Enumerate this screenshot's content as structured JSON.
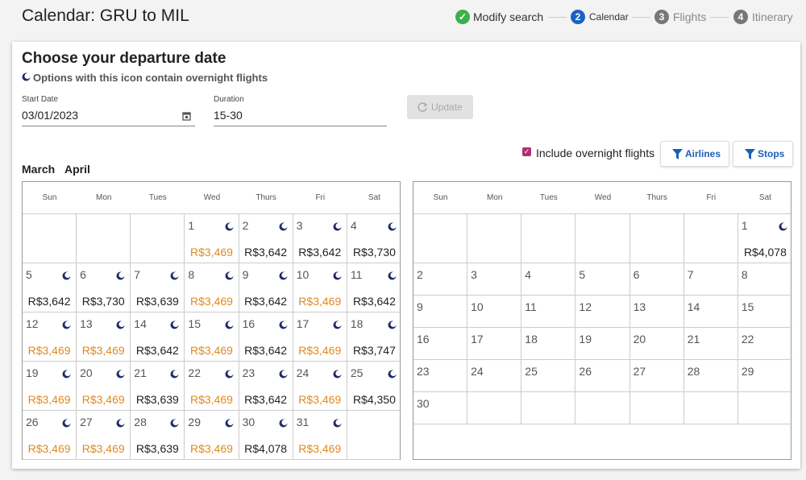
{
  "header": {
    "title": "Calendar: GRU to MIL",
    "steps": [
      {
        "label": "Modify search"
      },
      {
        "number": "2",
        "label": "Calendar"
      },
      {
        "number": "3",
        "label": "Flights"
      },
      {
        "number": "4",
        "label": "Itinerary"
      }
    ]
  },
  "panel": {
    "title": "Choose your departure date",
    "note": "Options with this icon contain overnight flights",
    "start_date": {
      "label": "Start Date",
      "value": "03/01/2023"
    },
    "duration": {
      "label": "Duration",
      "value": "15-30"
    },
    "update_button": "Update",
    "overnight_checkbox": {
      "label": "Include overnight flights",
      "checked": true
    },
    "filters": [
      "Airlines",
      "Stops"
    ],
    "month_tabs": [
      "March",
      "April"
    ]
  },
  "weekdays": [
    "Sun",
    "Mon",
    "Tues",
    "Wed",
    "Thurs",
    "Fri",
    "Sat"
  ],
  "calendars": [
    {
      "weeks": [
        [
          null,
          null,
          null,
          {
            "day": 1,
            "price": "R$3,469",
            "low": true,
            "overnight": true
          },
          {
            "day": 2,
            "price": "R$3,642",
            "overnight": true
          },
          {
            "day": 3,
            "price": "R$3,642",
            "overnight": true
          },
          {
            "day": 4,
            "price": "R$3,730",
            "overnight": true
          }
        ],
        [
          {
            "day": 5,
            "price": "R$3,642",
            "overnight": true
          },
          {
            "day": 6,
            "price": "R$3,730",
            "overnight": true
          },
          {
            "day": 7,
            "price": "R$3,639",
            "overnight": true
          },
          {
            "day": 8,
            "price": "R$3,469",
            "low": true,
            "overnight": true
          },
          {
            "day": 9,
            "price": "R$3,642",
            "overnight": true
          },
          {
            "day": 10,
            "price": "R$3,469",
            "low": true,
            "overnight": true
          },
          {
            "day": 11,
            "price": "R$3,642",
            "overnight": true
          }
        ],
        [
          {
            "day": 12,
            "price": "R$3,469",
            "low": true,
            "overnight": true
          },
          {
            "day": 13,
            "price": "R$3,469",
            "low": true,
            "overnight": true
          },
          {
            "day": 14,
            "price": "R$3,642",
            "overnight": true
          },
          {
            "day": 15,
            "price": "R$3,469",
            "low": true,
            "overnight": true
          },
          {
            "day": 16,
            "price": "R$3,642",
            "overnight": true
          },
          {
            "day": 17,
            "price": "R$3,469",
            "low": true,
            "overnight": true
          },
          {
            "day": 18,
            "price": "R$3,747",
            "overnight": true
          }
        ],
        [
          {
            "day": 19,
            "price": "R$3,469",
            "low": true,
            "overnight": true
          },
          {
            "day": 20,
            "price": "R$3,469",
            "low": true,
            "overnight": true
          },
          {
            "day": 21,
            "price": "R$3,639",
            "overnight": true
          },
          {
            "day": 22,
            "price": "R$3,469",
            "low": true,
            "overnight": true
          },
          {
            "day": 23,
            "price": "R$3,642",
            "overnight": true
          },
          {
            "day": 24,
            "price": "R$3,469",
            "low": true,
            "overnight": true
          },
          {
            "day": 25,
            "price": "R$4,350",
            "overnight": true
          }
        ],
        [
          {
            "day": 26,
            "price": "R$3,469",
            "low": true,
            "overnight": true
          },
          {
            "day": 27,
            "price": "R$3,469",
            "low": true,
            "overnight": true
          },
          {
            "day": 28,
            "price": "R$3,639",
            "overnight": true
          },
          {
            "day": 29,
            "price": "R$3,469",
            "low": true,
            "overnight": true
          },
          {
            "day": 30,
            "price": "R$4,078",
            "overnight": true
          },
          {
            "day": 31,
            "price": "R$3,469",
            "low": true,
            "overnight": true
          },
          null
        ]
      ]
    },
    {
      "weeks": [
        [
          null,
          null,
          null,
          null,
          null,
          null,
          {
            "day": 1,
            "price": "R$4,078",
            "overnight": true
          }
        ],
        [
          {
            "day": 2
          },
          {
            "day": 3
          },
          {
            "day": 4
          },
          {
            "day": 5
          },
          {
            "day": 6
          },
          {
            "day": 7
          },
          {
            "day": 8
          }
        ],
        [
          {
            "day": 9
          },
          {
            "day": 10
          },
          {
            "day": 11
          },
          {
            "day": 12
          },
          {
            "day": 13
          },
          {
            "day": 14
          },
          {
            "day": 15
          }
        ],
        [
          {
            "day": 16
          },
          {
            "day": 17
          },
          {
            "day": 18
          },
          {
            "day": 19
          },
          {
            "day": 20
          },
          {
            "day": 21
          },
          {
            "day": 22
          }
        ],
        [
          {
            "day": 23
          },
          {
            "day": 24
          },
          {
            "day": 25
          },
          {
            "day": 26
          },
          {
            "day": 27
          },
          {
            "day": 28
          },
          {
            "day": 29
          }
        ],
        [
          {
            "day": 30
          },
          null,
          null,
          null,
          null,
          null,
          null
        ]
      ]
    }
  ]
}
